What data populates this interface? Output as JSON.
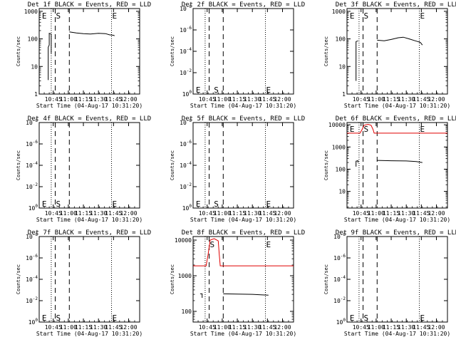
{
  "colors": {
    "events": "#000000",
    "lld": "#e00000",
    "axis": "#000000",
    "background": "#ffffff"
  },
  "common": {
    "xlabel": "Start Time (04-Aug-17 10:31:20)",
    "ylabel": "Counts/sec",
    "x_ticks": [
      "10:45",
      "11:00",
      "11:15",
      "11:30",
      "11:45",
      "12:00"
    ],
    "x_range": [
      "10:31",
      "12:11"
    ],
    "markers": {
      "E": "E",
      "S": "S"
    }
  },
  "chart_data": [
    {
      "type": "line",
      "title": "Det 1f BLACK = Events, RED = LLD",
      "y_scale": "log",
      "y_ticks": [
        "1",
        "10",
        "100",
        "1000"
      ],
      "ylim_exp": [
        0,
        3.1
      ],
      "lines": {
        "dotted": [
          "10:43",
          "11:43"
        ],
        "dashed": [
          "10:47",
          "11:01"
        ]
      },
      "marker_labels": [
        {
          "text": "E",
          "x": "10:33",
          "y": 1000
        },
        {
          "text": "S",
          "x": "10:47",
          "y": 1000
        },
        {
          "text": "E",
          "x": "11:43",
          "y": 1000
        }
      ],
      "series": [
        {
          "name": "Events",
          "color": "#000000",
          "segments": [
            [
              [
                "10:40",
                3.2
              ],
              [
                "10:40",
                50
              ],
              [
                "10:41",
                60
              ],
              [
                "10:41",
                160
              ],
              [
                "10:43",
                150
              ],
              [
                "10:43",
                30
              ]
            ],
            [
              [
                "11:01",
                180
              ],
              [
                "11:08",
                165
              ],
              [
                "11:15",
                155
              ],
              [
                "11:22",
                150
              ],
              [
                "11:30",
                160
              ],
              [
                "11:37",
                155
              ],
              [
                "11:41",
                140
              ],
              [
                "11:45",
                135
              ],
              [
                "11:46",
                130
              ]
            ]
          ]
        }
      ]
    },
    {
      "type": "line",
      "title": "Det 2f BLACK = Events, RED = LLD",
      "y_scale": "log",
      "y_ticks": [
        "10^0",
        "10^-2",
        "10^-4",
        "10^-6",
        "10^-8"
      ],
      "ylim_exp": [
        0,
        8
      ],
      "lines": {
        "dotted": [
          "10:43",
          "11:43"
        ],
        "dashed": [
          "10:47",
          "11:01"
        ]
      },
      "marker_labels": [
        {
          "text": "E",
          "x": "10:33",
          "y": 1
        },
        {
          "text": "S",
          "x": "10:51",
          "y": 1
        },
        {
          "text": "E",
          "x": "11:43",
          "y": 1
        }
      ],
      "series": []
    },
    {
      "type": "line",
      "title": "Det 3f BLACK = Events, RED = LLD",
      "y_scale": "log",
      "y_ticks": [
        "1",
        "10",
        "100",
        "1000"
      ],
      "ylim_exp": [
        0,
        3.1
      ],
      "lines": {
        "dotted": [
          "10:43",
          "11:43"
        ],
        "dashed": [
          "10:47",
          "11:01"
        ]
      },
      "marker_labels": [
        {
          "text": "E",
          "x": "10:33",
          "y": 1000
        },
        {
          "text": "S",
          "x": "10:47",
          "y": 1000
        },
        {
          "text": "E",
          "x": "11:43",
          "y": 1000
        }
      ],
      "series": [
        {
          "name": "Events",
          "color": "#000000",
          "segments": [
            [
              [
                "10:40",
                3.0
              ],
              [
                "10:40",
                80
              ],
              [
                "10:42",
                85
              ]
            ],
            [
              [
                "11:01",
                90
              ],
              [
                "11:08",
                85
              ],
              [
                "11:15",
                95
              ],
              [
                "11:22",
                110
              ],
              [
                "11:27",
                115
              ],
              [
                "11:33",
                100
              ],
              [
                "11:39",
                85
              ],
              [
                "11:44",
                75
              ],
              [
                "11:46",
                60
              ]
            ]
          ]
        }
      ]
    },
    {
      "type": "line",
      "title": "Det 4f BLACK = Events, RED = LLD",
      "y_scale": "log",
      "y_ticks": [
        "10^0",
        "10^-2",
        "10^-4",
        "10^-6",
        "10^-8"
      ],
      "ylim_exp": [
        0,
        8
      ],
      "lines": {
        "dotted": [
          "10:43",
          "11:43"
        ],
        "dashed": [
          "10:47",
          "11:01"
        ]
      },
      "marker_labels": [
        {
          "text": "E",
          "x": "10:33",
          "y": 1
        },
        {
          "text": "S",
          "x": "10:47",
          "y": 1
        },
        {
          "text": "E",
          "x": "11:43",
          "y": 1
        }
      ],
      "series": []
    },
    {
      "type": "line",
      "title": "Det 5f BLACK = Events, RED = LLD",
      "y_scale": "log",
      "y_ticks": [
        "10^0",
        "10^-2",
        "10^-4",
        "10^-6",
        "10^-8"
      ],
      "ylim_exp": [
        0,
        8
      ],
      "lines": {
        "dotted": [
          "10:43",
          "11:43"
        ],
        "dashed": [
          "10:47",
          "11:01"
        ]
      },
      "marker_labels": [
        {
          "text": "E",
          "x": "10:33",
          "y": 1
        },
        {
          "text": "S",
          "x": "10:51",
          "y": 1
        },
        {
          "text": "E",
          "x": "11:43",
          "y": 1
        }
      ],
      "series": []
    },
    {
      "type": "line",
      "title": "Det 6f BLACK = Events, RED = LLD",
      "y_scale": "log",
      "y_ticks": [
        "10",
        "100",
        "1000",
        "10000"
      ],
      "ylim_exp": [
        0.25,
        4.1
      ],
      "lines": {
        "dotted": [
          "10:43",
          "11:43"
        ],
        "dashed": [
          "10:47",
          "11:01"
        ]
      },
      "marker_labels": [
        {
          "text": "E",
          "x": "10:33",
          "y": 10000
        },
        {
          "text": "S",
          "x": "10:47",
          "y": 10000
        },
        {
          "text": "E",
          "x": "11:43",
          "y": 10000
        }
      ],
      "series": [
        {
          "name": "LLD",
          "color": "#e00000",
          "segments": [
            [
              [
                "10:31",
                4200
              ],
              [
                "10:44",
                4200
              ],
              [
                "10:46",
                6000
              ],
              [
                "10:48",
                9500
              ],
              [
                "10:52",
                10500
              ],
              [
                "10:55",
                9500
              ],
              [
                "10:57",
                6000
              ],
              [
                "10:58",
                4200
              ],
              [
                "12:11",
                4200
              ]
            ]
          ]
        },
        {
          "name": "Events",
          "color": "#000000",
          "segments": [
            [
              [
                "10:40",
                130
              ],
              [
                "10:40",
                230
              ],
              [
                "10:42",
                240
              ],
              [
                "10:42",
                200
              ]
            ],
            [
              [
                "11:01",
                250
              ],
              [
                "11:15",
                240
              ],
              [
                "11:30",
                235
              ],
              [
                "11:40",
                220
              ],
              [
                "11:46",
                200
              ]
            ]
          ]
        }
      ]
    },
    {
      "type": "line",
      "title": "Det 7f BLACK = Events, RED = LLD",
      "y_scale": "log",
      "y_ticks": [
        "10^0",
        "10^-2",
        "10^-4",
        "10^-6",
        "10^-8"
      ],
      "ylim_exp": [
        0,
        8
      ],
      "lines": {
        "dotted": [
          "10:43",
          "11:43"
        ],
        "dashed": [
          "10:47",
          "11:01"
        ]
      },
      "marker_labels": [
        {
          "text": "E",
          "x": "10:33",
          "y": 1
        },
        {
          "text": "S",
          "x": "10:47",
          "y": 1
        },
        {
          "text": "E",
          "x": "11:43",
          "y": 1
        }
      ],
      "series": []
    },
    {
      "type": "line",
      "title": "Det 8f BLACK = Events, RED = LLD",
      "y_scale": "log",
      "y_ticks": [
        "100",
        "1000",
        "10000"
      ],
      "ylim_exp": [
        1.7,
        4.1
      ],
      "lines": {
        "dotted": [
          "10:43",
          "11:43"
        ],
        "dashed": [
          "10:47",
          "11:01"
        ]
      },
      "marker_labels": [
        {
          "text": "S",
          "x": "10:47",
          "y": 10000
        },
        {
          "text": "E",
          "x": "11:43",
          "y": 10000
        }
      ],
      "series": [
        {
          "name": "LLD",
          "color": "#e00000",
          "segments": [
            [
              [
                "10:31",
                1900
              ],
              [
                "10:44",
                1900
              ],
              [
                "10:46",
                4000
              ],
              [
                "10:48",
                10000
              ],
              [
                "10:52",
                11000
              ],
              [
                "10:56",
                9500
              ],
              [
                "10:57",
                4000
              ],
              [
                "10:58",
                1900
              ],
              [
                "12:11",
                1900
              ]
            ]
          ]
        },
        {
          "name": "Events",
          "color": "#000000",
          "segments": [
            [
              [
                "10:38",
                310
              ],
              [
                "10:40",
                310
              ],
              [
                "10:40",
                240
              ]
            ],
            [
              [
                "11:01",
                310
              ],
              [
                "11:15",
                305
              ],
              [
                "11:30",
                300
              ],
              [
                "11:40",
                290
              ],
              [
                "11:46",
                285
              ]
            ]
          ]
        }
      ]
    },
    {
      "type": "line",
      "title": "Det 9f BLACK = Events, RED = LLD",
      "y_scale": "log",
      "y_ticks": [
        "10^0",
        "10^-2",
        "10^-4",
        "10^-6",
        "10^-8"
      ],
      "ylim_exp": [
        0,
        8
      ],
      "lines": {
        "dotted": [
          "10:43",
          "11:43"
        ],
        "dashed": [
          "10:47",
          "11:01"
        ]
      },
      "marker_labels": [
        {
          "text": "E",
          "x": "10:33",
          "y": 1
        },
        {
          "text": "S",
          "x": "10:47",
          "y": 1
        },
        {
          "text": "E",
          "x": "11:43",
          "y": 1
        }
      ],
      "series": []
    }
  ]
}
